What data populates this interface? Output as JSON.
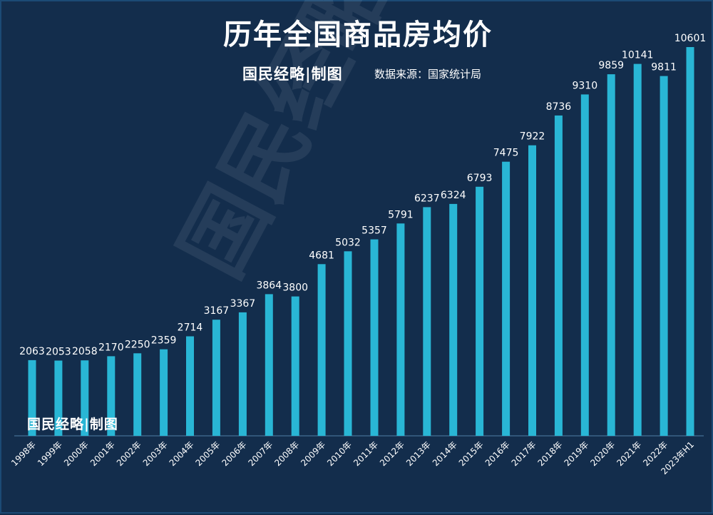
{
  "title": "历年全国商品房均价",
  "brand": "国民经略|制图",
  "source": "数据来源：国家统计局",
  "watermark": "国民经略",
  "colors": {
    "background": "#132d4c",
    "bar": "#29b6d5",
    "text": "#ffffff",
    "axis": "#4f7fa6"
  },
  "chart_data": {
    "type": "bar",
    "title": "历年全国商品房均价",
    "xlabel": "",
    "ylabel": "",
    "grid": false,
    "legend": "none",
    "ylim": [
      0,
      11000
    ],
    "categories": [
      "1998年",
      "1999年",
      "2000年",
      "2001年",
      "2002年",
      "2003年",
      "2004年",
      "2005年",
      "2006年",
      "2007年",
      "2008年",
      "2009年",
      "2010年",
      "2011年",
      "2012年",
      "2013年",
      "2014年",
      "2015年",
      "2016年",
      "2017年",
      "2018年",
      "2019年",
      "2020年",
      "2021年",
      "2022年",
      "2023年H1"
    ],
    "values": [
      2063,
      2053,
      2058,
      2170,
      2250,
      2359,
      2714,
      3167,
      3367,
      3864,
      3800,
      4681,
      5032,
      5357,
      5791,
      6237,
      6324,
      6793,
      7475,
      7922,
      8736,
      9310,
      9859,
      10141,
      9811,
      10601
    ]
  }
}
